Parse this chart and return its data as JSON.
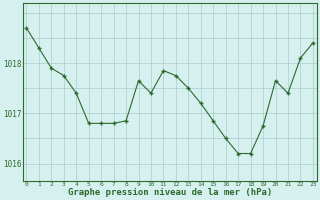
{
  "x": [
    0,
    1,
    2,
    3,
    4,
    5,
    6,
    7,
    8,
    9,
    10,
    11,
    12,
    13,
    14,
    15,
    16,
    17,
    18,
    19,
    20,
    21,
    22,
    23
  ],
  "y": [
    1018.7,
    1018.3,
    1017.9,
    1017.75,
    1017.4,
    1016.8,
    1016.8,
    1016.8,
    1016.85,
    1017.65,
    1017.4,
    1017.85,
    1017.75,
    1017.5,
    1017.2,
    1016.85,
    1016.5,
    1016.2,
    1016.2,
    1016.75,
    1017.65,
    1017.4,
    1018.1,
    1018.4
  ],
  "line_color": "#2d6a2d",
  "marker": "+",
  "marker_size": 3.5,
  "marker_lw": 1.0,
  "line_width": 0.8,
  "background_color": "#d6f0f0",
  "grid_color": "#aacccc",
  "tick_color": "#2d6a2d",
  "xlabel": "Graphe pression niveau de la mer (hPa)",
  "xlabel_fontsize": 6.5,
  "xlabel_color": "#2d6a2d",
  "xlabel_bold": true,
  "ytick_fontsize": 5.5,
  "xtick_fontsize": 4.5,
  "yticks": [
    1016,
    1017,
    1018
  ],
  "ylim": [
    1015.65,
    1019.2
  ],
  "xlim": [
    -0.3,
    23.3
  ],
  "xticks": [
    0,
    1,
    2,
    3,
    4,
    5,
    6,
    7,
    8,
    9,
    10,
    11,
    12,
    13,
    14,
    15,
    16,
    17,
    18,
    19,
    20,
    21,
    22,
    23
  ],
  "spine_color": "#2d6a2d",
  "spine_lw": 0.8
}
